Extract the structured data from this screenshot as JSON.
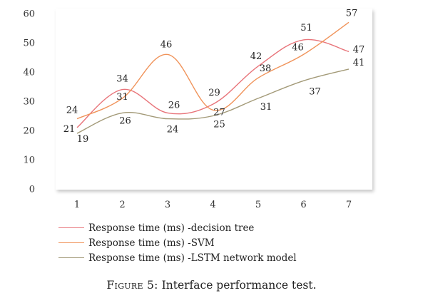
{
  "chart_data": {
    "type": "line",
    "categories": [
      "1",
      "2",
      "3",
      "4",
      "5",
      "6",
      "7"
    ],
    "ylim": [
      0,
      60
    ],
    "yticks": [
      "0",
      "10",
      "20",
      "30",
      "40",
      "50",
      "60"
    ],
    "grid": false,
    "legend_position": "bottom",
    "series": [
      {
        "name": "Response time (ms) -decision tree",
        "color": "#e8747a",
        "values": [
          21,
          34,
          26,
          29,
          42,
          51,
          47
        ]
      },
      {
        "name": "Response time (ms) -SVM",
        "color": "#f0935a",
        "values": [
          24,
          31,
          46,
          27,
          38,
          46,
          57
        ]
      },
      {
        "name": "Response time (ms) -LSTM network model",
        "color": "#a39a78",
        "values": [
          19,
          26,
          24,
          25,
          31,
          37,
          41
        ]
      }
    ]
  },
  "caption": {
    "prefix": "Figure 5:",
    "text": "Interface performance test."
  }
}
